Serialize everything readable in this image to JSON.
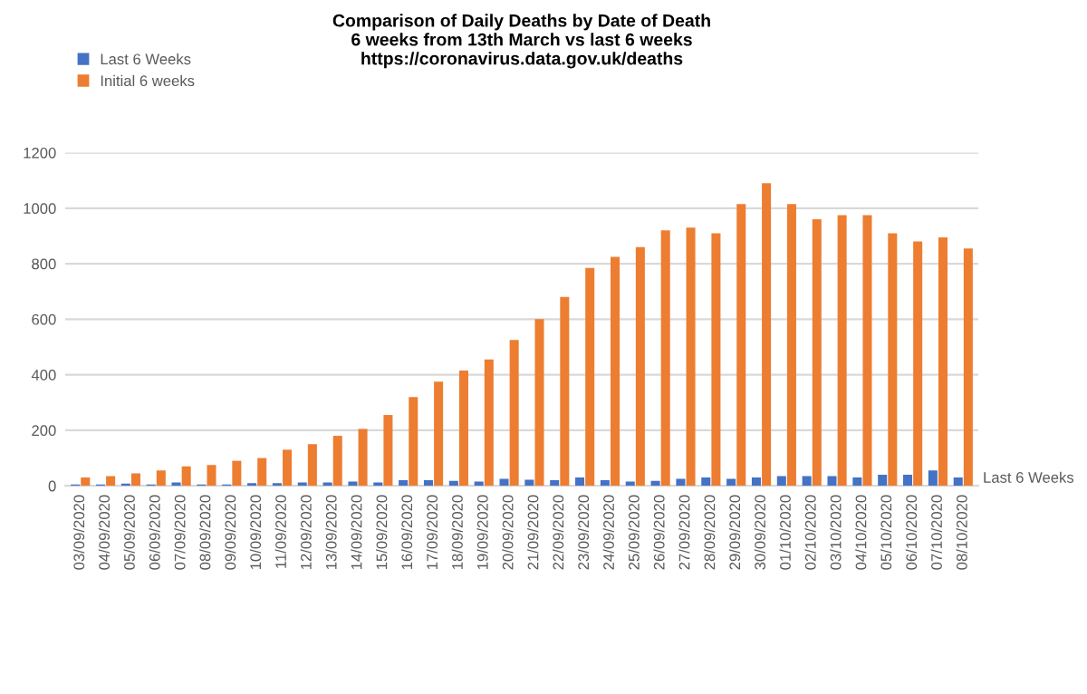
{
  "chart_data": {
    "type": "bar",
    "title": "Comparison of Daily Deaths by Date of Death\n6 weeks from 13th March vs last 6 weeks\nhttps://coronavirus.data.gov.uk/deaths",
    "categories": [
      "03/09/2020",
      "04/09/2020",
      "05/09/2020",
      "06/09/2020",
      "07/09/2020",
      "08/09/2020",
      "09/09/2020",
      "10/09/2020",
      "11/09/2020",
      "12/09/2020",
      "13/09/2020",
      "14/09/2020",
      "15/09/2020",
      "16/09/2020",
      "17/09/2020",
      "18/09/2020",
      "19/09/2020",
      "20/09/2020",
      "21/09/2020",
      "22/09/2020",
      "23/09/2020",
      "24/09/2020",
      "25/09/2020",
      "26/09/2020",
      "27/09/2020",
      "28/09/2020",
      "29/09/2020",
      "30/09/2020",
      "01/10/2020",
      "02/10/2020",
      "03/10/2020",
      "04/10/2020",
      "05/10/2020",
      "06/10/2020",
      "07/10/2020",
      "08/10/2020"
    ],
    "series": [
      {
        "name": "Last 6 Weeks",
        "color": "#4472c4",
        "values": [
          5,
          5,
          8,
          5,
          12,
          5,
          5,
          10,
          10,
          12,
          12,
          15,
          12,
          20,
          20,
          18,
          15,
          25,
          22,
          20,
          30,
          20,
          15,
          18,
          25,
          30,
          25,
          30,
          35,
          35,
          35,
          30,
          40,
          40,
          55,
          30
        ]
      },
      {
        "name": "Initial 6 weeks",
        "color": "#ed7d31",
        "values": [
          30,
          35,
          45,
          55,
          70,
          75,
          90,
          100,
          130,
          150,
          180,
          205,
          255,
          320,
          375,
          415,
          455,
          525,
          600,
          680,
          785,
          825,
          860,
          920,
          930,
          910,
          1015,
          1090,
          1015,
          960,
          975,
          975,
          910,
          880,
          895,
          855
        ]
      }
    ],
    "ylim": [
      0,
      1200
    ],
    "yticks": [
      0,
      200,
      400,
      600,
      800,
      1000,
      1200
    ],
    "grid": "y",
    "legend": "top left",
    "annotations": [
      "Last 6 Weeks"
    ]
  }
}
